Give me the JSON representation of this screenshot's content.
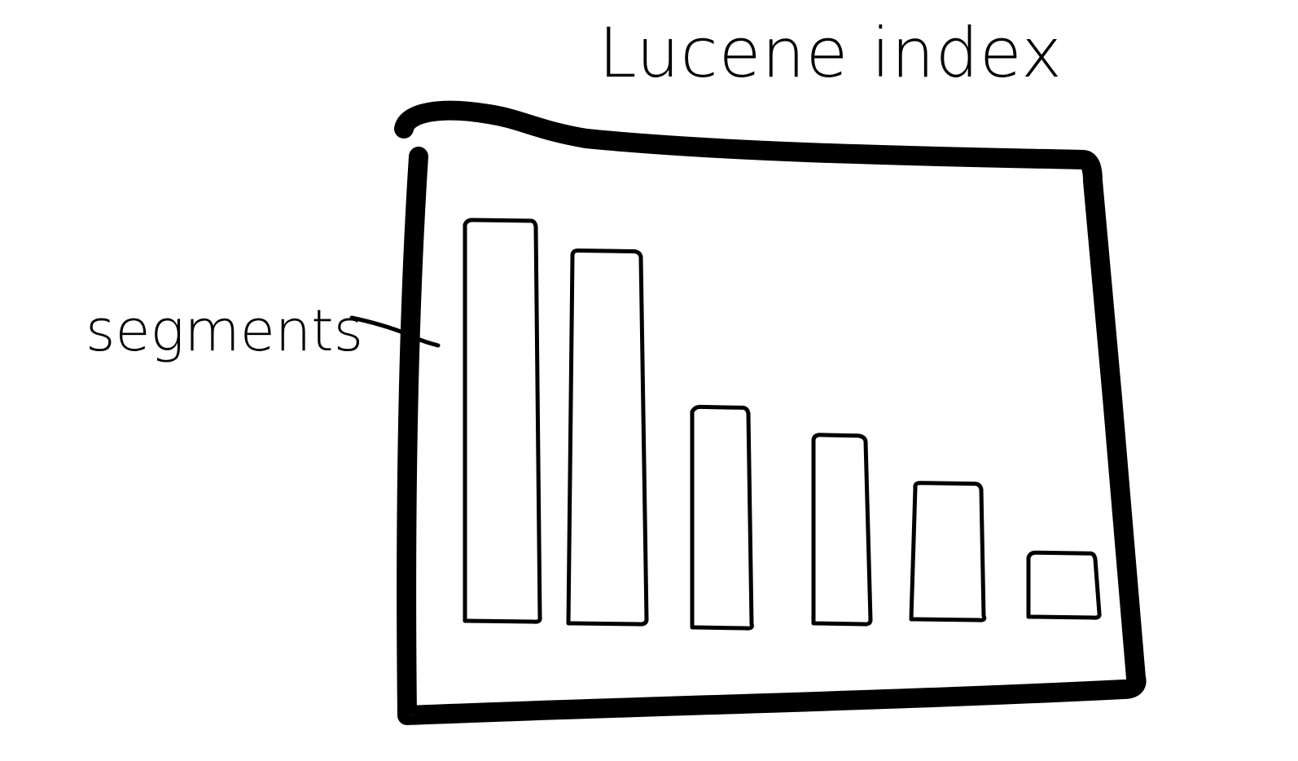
{
  "diagram": {
    "title": "Lucene index",
    "label": "segments",
    "stroke_color": "#000000",
    "background": "#ffffff",
    "segments": [
      {
        "relative_size": 1.0
      },
      {
        "relative_size": 0.93
      },
      {
        "relative_size": 0.55
      },
      {
        "relative_size": 0.47
      },
      {
        "relative_size": 0.34
      },
      {
        "relative_size": 0.16
      }
    ]
  }
}
